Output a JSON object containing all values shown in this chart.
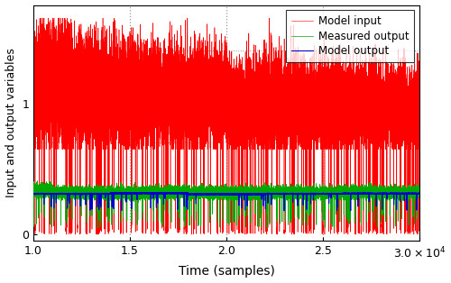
{
  "x_start": 10000,
  "x_end": 30000,
  "n_points": 20000,
  "vlines_x": [
    15000,
    20000,
    25000
  ],
  "ylim": [
    -0.05,
    1.75
  ],
  "xlim": [
    10000,
    30000
  ],
  "yticks": [
    0,
    1
  ],
  "xticks": [
    10000,
    15000,
    20000,
    25000,
    30000
  ],
  "xlabel": "Time (samples)",
  "ylabel": "Input and output variables",
  "color_red": "#FF0000",
  "color_green": "#00AA00",
  "color_blue": "#0000CC",
  "legend_labels": [
    "Model input",
    "Measured output",
    "Model output"
  ],
  "grid_color": "#999999",
  "bg_color": "#FFFFFF",
  "hgrid_values": [
    0.35,
    0.7,
    1.05,
    1.4
  ],
  "red_mean": 1.05,
  "red_std": 0.18,
  "red_lower_clip": 0.65,
  "red_upper_clip": 1.65,
  "red_spike_prob": 0.012,
  "green_mean": 0.32,
  "green_std": 0.022,
  "green_lower_clip": 0.26,
  "green_upper_clip": 0.42,
  "green_spike_prob": 0.004,
  "blue_mean": 0.305,
  "blue_std": 0.002,
  "blue_spike_prob": 0.003
}
